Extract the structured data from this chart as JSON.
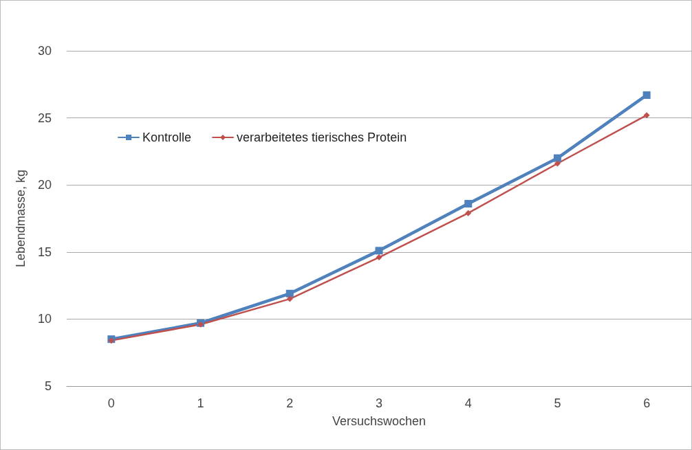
{
  "chart_data": {
    "type": "line",
    "xlabel": "Versuchswochen",
    "ylabel": "Lebendmasse, kg",
    "categories": [
      "0",
      "1",
      "2",
      "3",
      "4",
      "5",
      "6"
    ],
    "series": [
      {
        "name": "Kontrolle",
        "color": "#4f81bd",
        "marker": "square",
        "values": [
          8.5,
          9.7,
          11.9,
          15.1,
          18.6,
          22.0,
          26.7
        ]
      },
      {
        "name": "verarbeitetes tierisches Protein",
        "color": "#c0504d",
        "marker": "diamond",
        "values": [
          8.4,
          9.6,
          11.5,
          14.6,
          17.9,
          21.6,
          25.2
        ]
      }
    ],
    "ylim": [
      5,
      30
    ],
    "yticks": [
      5,
      10,
      15,
      20,
      25,
      30
    ],
    "grid": "y",
    "legend": "top left",
    "line_style": "solid"
  }
}
